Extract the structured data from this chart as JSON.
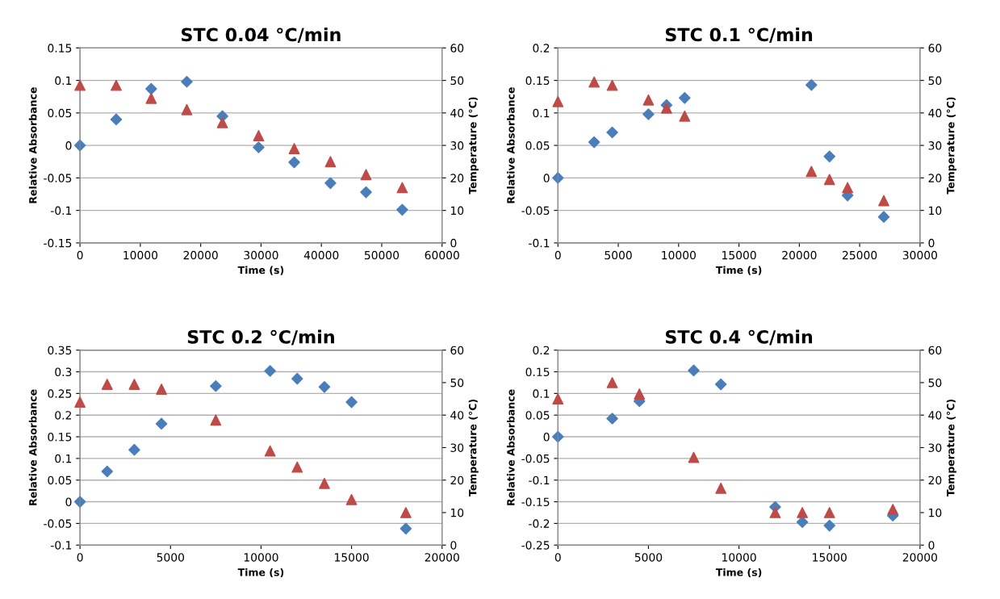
{
  "chart_data": [
    {
      "type": "scatter",
      "title": "STC 0.04 °C/min",
      "xlabel": "Time (s)",
      "ylabel": "Relative Absorbance",
      "y2label": "Temperature (°C)",
      "xlim": [
        0,
        60000
      ],
      "xticks": [
        0,
        10000,
        20000,
        30000,
        40000,
        50000,
        60000
      ],
      "ylim": [
        -0.15,
        0.15
      ],
      "yticks": [
        -0.15,
        -0.1,
        -0.05,
        0,
        0.05,
        0.1,
        0.15
      ],
      "y2lim": [
        0,
        60
      ],
      "y2ticks": [
        0,
        10,
        20,
        30,
        40,
        50,
        60
      ],
      "grid": "y",
      "series": [
        {
          "color": "#4a7ebb",
          "marker": "diamond",
          "x": [
            0,
            6000,
            11800,
            17700,
            23600,
            29600,
            35500,
            41500,
            47400,
            53400
          ],
          "values": [
            0,
            0.04,
            0.087,
            0.098,
            0.045,
            -0.003,
            -0.026,
            -0.058,
            -0.072,
            -0.099
          ]
        },
        {
          "color": "#be4b48",
          "marker": "triangle",
          "axis": "y2",
          "x": [
            0,
            6000,
            11800,
            17700,
            23600,
            29600,
            35500,
            41500,
            47400,
            53400
          ],
          "values": [
            48.5,
            48.5,
            44.5,
            41,
            37,
            33,
            29,
            25,
            21,
            17
          ]
        }
      ]
    },
    {
      "type": "scatter",
      "title": "STC 0.1 °C/min",
      "xlabel": "Time (s)",
      "ylabel": "Relative Absorbance",
      "y2label": "Temperature (°C)",
      "xlim": [
        0,
        30000
      ],
      "xticks": [
        0,
        5000,
        10000,
        15000,
        20000,
        25000,
        30000
      ],
      "ylim": [
        -0.1,
        0.2
      ],
      "yticks": [
        -0.1,
        -0.05,
        0,
        0.05,
        0.1,
        0.15,
        0.2
      ],
      "y2lim": [
        0,
        60
      ],
      "y2ticks": [
        0,
        10,
        20,
        30,
        40,
        50,
        60
      ],
      "grid": "y",
      "series": [
        {
          "color": "#4a7ebb",
          "marker": "diamond",
          "x": [
            0,
            3000,
            4500,
            7500,
            9000,
            10500,
            21000,
            22500,
            24000,
            27000
          ],
          "values": [
            0,
            0.055,
            0.07,
            0.098,
            0.112,
            0.123,
            0.143,
            0.033,
            -0.027,
            -0.06
          ]
        },
        {
          "color": "#be4b48",
          "marker": "triangle",
          "axis": "y2",
          "x": [
            0,
            3000,
            4500,
            7500,
            9000,
            10500,
            21000,
            22500,
            24000,
            27000
          ],
          "values": [
            43.5,
            49.5,
            48.5,
            44,
            41.5,
            39,
            22,
            19.5,
            17,
            13
          ]
        }
      ]
    },
    {
      "type": "scatter",
      "title": "STC 0.2 °C/min",
      "xlabel": "Time (s)",
      "ylabel": "Relative Absorbance",
      "y2label": "Temperature (°C)",
      "xlim": [
        0,
        20000
      ],
      "xticks": [
        0,
        5000,
        10000,
        15000,
        20000
      ],
      "ylim": [
        -0.1,
        0.35
      ],
      "yticks": [
        -0.1,
        -0.05,
        0,
        0.05,
        0.1,
        0.15,
        0.2,
        0.25,
        0.3,
        0.35
      ],
      "y2lim": [
        0,
        60
      ],
      "y2ticks": [
        0,
        10,
        20,
        30,
        40,
        50,
        60
      ],
      "grid": "y",
      "series": [
        {
          "color": "#4a7ebb",
          "marker": "diamond",
          "x": [
            0,
            1500,
            3000,
            4500,
            7500,
            10500,
            12000,
            13500,
            15000,
            18000
          ],
          "values": [
            0,
            0.07,
            0.12,
            0.18,
            0.267,
            0.302,
            0.284,
            0.265,
            0.23,
            -0.062
          ]
        },
        {
          "color": "#be4b48",
          "marker": "triangle",
          "axis": "y2",
          "x": [
            0,
            1500,
            3000,
            4500,
            7500,
            10500,
            12000,
            13500,
            15000,
            18000
          ],
          "values": [
            44,
            49.5,
            49.5,
            48,
            38.5,
            29,
            24,
            19,
            14,
            10
          ]
        }
      ]
    },
    {
      "type": "scatter",
      "title": "STC 0.4 °C/min",
      "xlabel": "Time (s)",
      "ylabel": "Relative Absorbance",
      "y2label": "Temperature (°C)",
      "xlim": [
        0,
        20000
      ],
      "xticks": [
        0,
        5000,
        10000,
        15000,
        20000
      ],
      "ylim": [
        -0.25,
        0.2
      ],
      "yticks": [
        -0.25,
        -0.2,
        -0.15,
        -0.1,
        -0.05,
        0,
        0.05,
        0.1,
        0.15,
        0.2
      ],
      "y2lim": [
        0,
        60
      ],
      "y2ticks": [
        0,
        10,
        20,
        30,
        40,
        50,
        60
      ],
      "grid": "y",
      "series": [
        {
          "color": "#4a7ebb",
          "marker": "diamond",
          "x": [
            0,
            3000,
            4500,
            7500,
            9000,
            12000,
            13500,
            15000,
            18500
          ],
          "values": [
            0,
            0.042,
            0.082,
            0.153,
            0.121,
            -0.162,
            -0.197,
            -0.205,
            -0.182
          ]
        },
        {
          "color": "#be4b48",
          "marker": "triangle",
          "axis": "y2",
          "x": [
            0,
            3000,
            4500,
            7500,
            9000,
            12000,
            13500,
            15000,
            18500
          ],
          "values": [
            45,
            50,
            46.5,
            27,
            17.5,
            10,
            10,
            10,
            11
          ]
        }
      ]
    }
  ]
}
